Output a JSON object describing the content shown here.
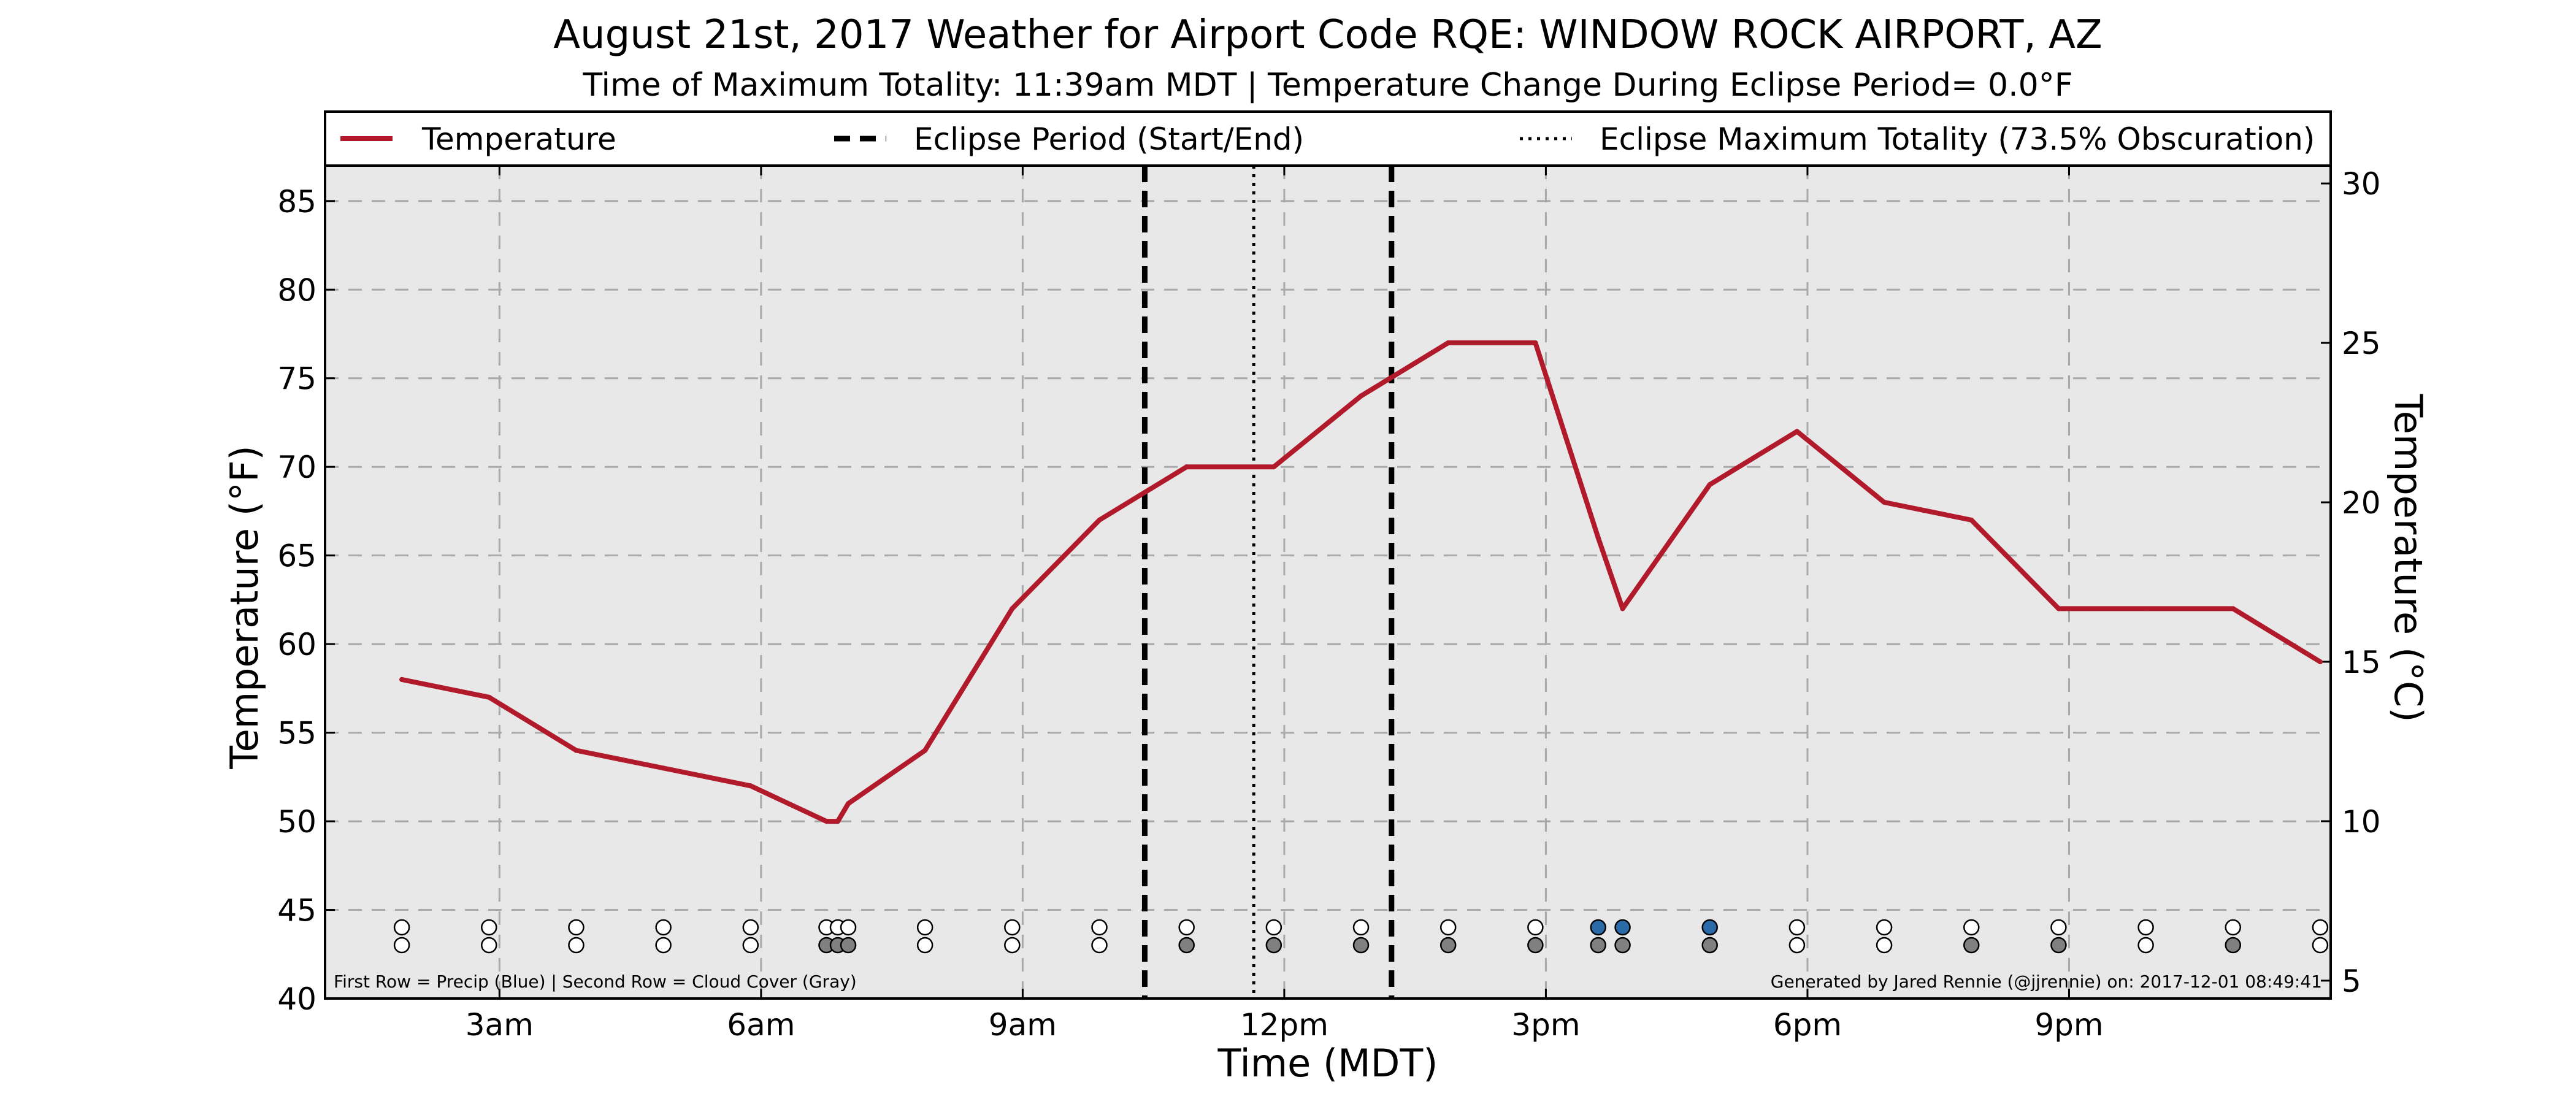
{
  "chart_data": {
    "type": "line",
    "title": "August 21st, 2017 Weather for Airport Code RQE: WINDOW ROCK AIRPORT, AZ",
    "subtitle": "Time of Maximum Totality: 11:39am MDT | Temperature Change During Eclipse Period= 0.0°F",
    "xlabel": "Time (MDT)",
    "ylabel": "Temperature (°F)",
    "ylabel_right": "Temperature (°C)",
    "xlim_hours": [
      1.0,
      24.0
    ],
    "ylim": [
      40,
      87
    ],
    "ylim_right_celsius": [
      4.44,
      30.56
    ],
    "grid": true,
    "legend_position": "top",
    "x_ticks": [
      {
        "hour": 3,
        "label": "3am"
      },
      {
        "hour": 6,
        "label": "6am"
      },
      {
        "hour": 9,
        "label": "9am"
      },
      {
        "hour": 12,
        "label": "12pm"
      },
      {
        "hour": 15,
        "label": "3pm"
      },
      {
        "hour": 18,
        "label": "6pm"
      },
      {
        "hour": 21,
        "label": "9pm"
      }
    ],
    "y_ticks": [
      40,
      45,
      50,
      55,
      60,
      65,
      70,
      75,
      80,
      85
    ],
    "y_ticks_right": [
      5,
      10,
      15,
      20,
      25,
      30
    ],
    "legend": [
      {
        "label": "Temperature",
        "style": "solid",
        "color": "#b11a2b"
      },
      {
        "label": "Eclipse Period (Start/End)",
        "style": "dashed",
        "color": "#000000"
      },
      {
        "label": "Eclipse Maximum Totality (73.5% Obscuration)",
        "style": "dotted",
        "color": "#000000"
      }
    ],
    "series": [
      {
        "name": "Temperature",
        "color": "#b11a2b",
        "points": [
          {
            "hour": 1.88,
            "f": 58
          },
          {
            "hour": 2.88,
            "f": 57
          },
          {
            "hour": 3.88,
            "f": 54
          },
          {
            "hour": 4.88,
            "f": 53
          },
          {
            "hour": 5.88,
            "f": 52
          },
          {
            "hour": 6.75,
            "f": 50
          },
          {
            "hour": 6.88,
            "f": 50
          },
          {
            "hour": 7.0,
            "f": 51
          },
          {
            "hour": 7.88,
            "f": 54
          },
          {
            "hour": 8.88,
            "f": 62
          },
          {
            "hour": 9.88,
            "f": 67
          },
          {
            "hour": 10.88,
            "f": 70
          },
          {
            "hour": 11.88,
            "f": 70
          },
          {
            "hour": 12.88,
            "f": 74
          },
          {
            "hour": 13.88,
            "f": 77
          },
          {
            "hour": 14.88,
            "f": 77
          },
          {
            "hour": 15.6,
            "f": 66
          },
          {
            "hour": 15.88,
            "f": 62
          },
          {
            "hour": 16.88,
            "f": 69
          },
          {
            "hour": 17.88,
            "f": 72
          },
          {
            "hour": 18.88,
            "f": 68
          },
          {
            "hour": 19.88,
            "f": 67
          },
          {
            "hour": 20.88,
            "f": 62
          },
          {
            "hour": 21.88,
            "f": 62
          },
          {
            "hour": 22.88,
            "f": 62
          },
          {
            "hour": 23.88,
            "f": 59
          }
        ]
      }
    ],
    "eclipse_start_hour": 10.4,
    "eclipse_end_hour": 13.23,
    "eclipse_max_hour": 11.65,
    "observations": [
      {
        "hour": 1.88,
        "precip": false,
        "cloud": false
      },
      {
        "hour": 2.88,
        "precip": false,
        "cloud": false
      },
      {
        "hour": 3.88,
        "precip": false,
        "cloud": false
      },
      {
        "hour": 4.88,
        "precip": false,
        "cloud": false
      },
      {
        "hour": 5.88,
        "precip": false,
        "cloud": false
      },
      {
        "hour": 6.75,
        "precip": false,
        "cloud": true
      },
      {
        "hour": 6.88,
        "precip": false,
        "cloud": true
      },
      {
        "hour": 7.0,
        "precip": false,
        "cloud": true
      },
      {
        "hour": 7.88,
        "precip": false,
        "cloud": false
      },
      {
        "hour": 8.88,
        "precip": false,
        "cloud": false
      },
      {
        "hour": 9.88,
        "precip": false,
        "cloud": false
      },
      {
        "hour": 10.88,
        "precip": false,
        "cloud": true
      },
      {
        "hour": 11.88,
        "precip": false,
        "cloud": true
      },
      {
        "hour": 12.88,
        "precip": false,
        "cloud": true
      },
      {
        "hour": 13.88,
        "precip": false,
        "cloud": true
      },
      {
        "hour": 14.88,
        "precip": false,
        "cloud": true
      },
      {
        "hour": 15.6,
        "precip": true,
        "cloud": true
      },
      {
        "hour": 15.88,
        "precip": true,
        "cloud": true
      },
      {
        "hour": 16.88,
        "precip": true,
        "cloud": true
      },
      {
        "hour": 17.88,
        "precip": false,
        "cloud": false
      },
      {
        "hour": 18.88,
        "precip": false,
        "cloud": false
      },
      {
        "hour": 19.88,
        "precip": false,
        "cloud": true
      },
      {
        "hour": 20.88,
        "precip": false,
        "cloud": true
      },
      {
        "hour": 21.88,
        "precip": false,
        "cloud": false
      },
      {
        "hour": 22.88,
        "precip": false,
        "cloud": true
      },
      {
        "hour": 23.88,
        "precip": false,
        "cloud": false
      }
    ],
    "footnote_left": "First Row = Precip (Blue) | Second Row = Cloud Cover (Gray)",
    "footnote_right": "Generated by Jared Rennie (@jjrennie) on: 2017-12-01 08:49:41",
    "colors": {
      "plot_background": "#e8e8e8",
      "precip": "#2a6aa8",
      "cloud": "#808080",
      "empty_marker": "#ffffff"
    }
  }
}
